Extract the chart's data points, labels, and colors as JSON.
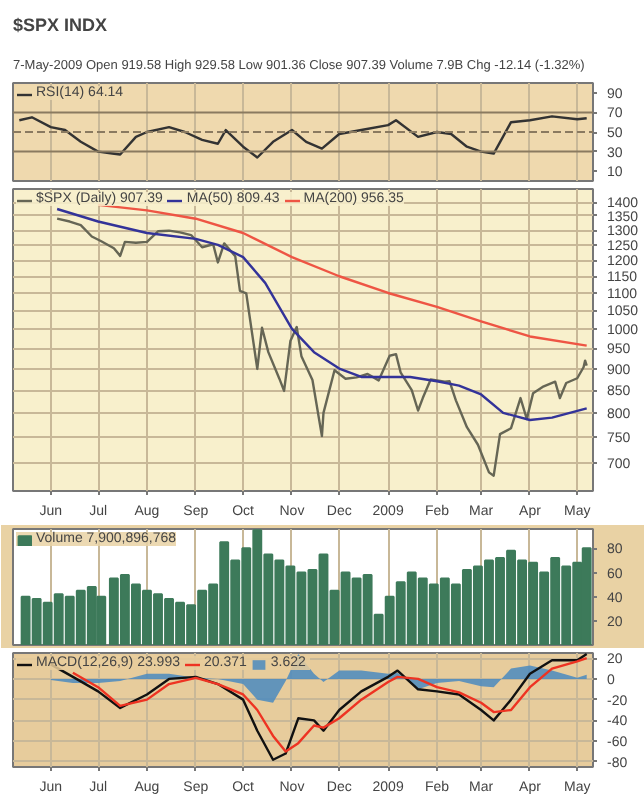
{
  "chart_data": [
    {
      "type": "line",
      "title": "$SPX INDX",
      "subtitle": "7-May-2009   Open 919.58 High 929.58 Low 901.36 Close 907.39 Volume 7.9B Chg -12.14 (-1.32%)",
      "series": [
        {
          "name": "RSI(14) 64.14",
          "color": "#333333",
          "x": [
            "2008-05-12",
            "2008-05-20",
            "2008-06-01",
            "2008-06-10",
            "2008-06-20",
            "2008-07-01",
            "2008-07-10",
            "2008-07-15",
            "2008-07-25",
            "2008-08-01",
            "2008-08-15",
            "2008-08-25",
            "2008-09-05",
            "2008-09-15",
            "2008-09-20",
            "2008-10-01",
            "2008-10-10",
            "2008-10-20",
            "2008-11-01",
            "2008-11-10",
            "2008-11-20",
            "2008-12-01",
            "2008-12-15",
            "2009-01-01",
            "2009-01-06",
            "2009-01-20",
            "2009-02-01",
            "2009-02-10",
            "2009-02-20",
            "2009-03-01",
            "2009-03-09",
            "2009-03-20",
            "2009-04-01",
            "2009-04-15",
            "2009-05-01",
            "2009-05-07"
          ],
          "values": [
            62,
            65,
            55,
            52,
            40,
            30,
            28,
            27,
            45,
            50,
            55,
            50,
            42,
            38,
            52,
            35,
            24,
            40,
            52,
            40,
            33,
            48,
            52,
            57,
            62,
            45,
            50,
            48,
            35,
            30,
            28,
            60,
            62,
            66,
            63,
            64
          ]
        }
      ],
      "xlim": [
        "2008-05-08",
        "2009-05-11"
      ],
      "ylim": [
        0,
        100
      ],
      "yticks": [
        10,
        30,
        50,
        70,
        90
      ],
      "xticks": [
        {
          "value": "2008-06-01",
          "label": null
        },
        {
          "value": "2008-07-01",
          "label": null
        },
        {
          "value": "2008-08-01",
          "label": null
        },
        {
          "value": "2008-09-01",
          "label": null
        },
        {
          "value": "2008-10-01",
          "label": null
        },
        {
          "value": "2008-11-01",
          "label": null
        },
        {
          "value": "2008-12-01",
          "label": null
        },
        {
          "value": "2009-01-01",
          "label": null
        },
        {
          "value": "2009-02-01",
          "label": null
        },
        {
          "value": "2009-03-01",
          "label": null
        },
        {
          "value": "2009-04-01",
          "label": null
        },
        {
          "value": "2009-05-01",
          "label": null
        }
      ],
      "ref_lines": [
        {
          "axis": "y",
          "value": 70,
          "color": "#8a7a60",
          "line_style": "solid"
        },
        {
          "axis": "y",
          "value": 50,
          "color": "#8a7a60",
          "line_style": "dashed"
        },
        {
          "axis": "y",
          "value": 30,
          "color": "#8a7a60",
          "line_style": "solid"
        }
      ],
      "tick_labels": "y",
      "grid": "x",
      "legend": "top left"
    },
    {
      "type": "line",
      "log": "y",
      "series": [
        {
          "name": "$SPX (Daily) 907.39",
          "color": "#666655",
          "x": [
            "2008-06-05",
            "2008-06-13",
            "2008-06-20",
            "2008-06-27",
            "2008-07-03",
            "2008-07-11",
            "2008-07-15",
            "2008-07-18",
            "2008-07-25",
            "2008-08-01",
            "2008-08-08",
            "2008-08-15",
            "2008-08-22",
            "2008-08-29",
            "2008-09-05",
            "2008-09-12",
            "2008-09-15",
            "2008-09-19",
            "2008-09-26",
            "2008-09-29",
            "2008-10-03",
            "2008-10-10",
            "2008-10-13",
            "2008-10-17",
            "2008-10-24",
            "2008-10-27",
            "2008-10-31",
            "2008-11-04",
            "2008-11-07",
            "2008-11-14",
            "2008-11-20",
            "2008-11-21",
            "2008-11-28",
            "2008-12-05",
            "2008-12-12",
            "2008-12-19",
            "2008-12-26",
            "2009-01-02",
            "2009-01-06",
            "2009-01-09",
            "2009-01-16",
            "2009-01-20",
            "2009-01-23",
            "2009-01-28",
            "2009-02-06",
            "2009-02-09",
            "2009-02-13",
            "2009-02-20",
            "2009-02-27",
            "2009-03-06",
            "2009-03-09",
            "2009-03-13",
            "2009-03-20",
            "2009-03-26",
            "2009-03-30",
            "2009-04-03",
            "2009-04-09",
            "2009-04-17",
            "2009-04-20",
            "2009-04-24",
            "2009-05-01",
            "2009-05-05",
            "2009-05-06",
            "2009-05-07"
          ],
          "values": [
            1340,
            1330,
            1317,
            1278,
            1262,
            1239,
            1214,
            1260,
            1257,
            1260,
            1296,
            1298,
            1292,
            1283,
            1242,
            1252,
            1193,
            1255,
            1213,
            1106,
            1099,
            899,
            1003,
            940,
            876,
            848,
            968,
            1005,
            930,
            873,
            752,
            800,
            896,
            876,
            879,
            887,
            872,
            931,
            935,
            890,
            850,
            805,
            832,
            874,
            869,
            870,
            827,
            770,
            735,
            683,
            677,
            756,
            768,
            832,
            787,
            843,
            857,
            869,
            832,
            866,
            877,
            903,
            919,
            907
          ]
        },
        {
          "name": "MA(50) 809.43",
          "color": "#333399",
          "x": [
            "2008-06-05",
            "2008-07-01",
            "2008-08-01",
            "2008-09-01",
            "2008-09-15",
            "2008-10-01",
            "2008-10-15",
            "2008-11-01",
            "2008-11-15",
            "2008-12-01",
            "2008-12-15",
            "2009-01-01",
            "2009-01-15",
            "2009-02-01",
            "2009-02-15",
            "2009-03-01",
            "2009-03-15",
            "2009-04-01",
            "2009-04-15",
            "2009-05-07"
          ],
          "values": [
            1375,
            1330,
            1290,
            1270,
            1250,
            1210,
            1130,
            1000,
            940,
            900,
            880,
            880,
            880,
            870,
            860,
            840,
            800,
            785,
            790,
            809.43
          ]
        },
        {
          "name": "MA(200) 956.35",
          "color": "#ee5544",
          "x": [
            "2008-07-01",
            "2008-08-01",
            "2008-09-01",
            "2008-10-01",
            "2008-11-01",
            "2008-12-01",
            "2009-01-01",
            "2009-02-01",
            "2009-03-01",
            "2009-04-01",
            "2009-05-07"
          ],
          "values": [
            1390,
            1370,
            1340,
            1290,
            1210,
            1150,
            1100,
            1060,
            1020,
            980,
            956.35
          ]
        }
      ],
      "xlim": [
        "2008-05-08",
        "2009-05-11"
      ],
      "ylim": [
        650,
        1450
      ],
      "yticks": [
        700,
        750,
        800,
        850,
        900,
        950,
        1000,
        1050,
        1100,
        1150,
        1200,
        1250,
        1300,
        1350,
        1400
      ],
      "xticks": [
        {
          "value": "2008-06-01",
          "label": "Jun"
        },
        {
          "value": "2008-07-01",
          "label": "Jul"
        },
        {
          "value": "2008-08-01",
          "label": "Aug"
        },
        {
          "value": "2008-09-01",
          "label": "Sep"
        },
        {
          "value": "2008-10-01",
          "label": "Oct"
        },
        {
          "value": "2008-11-01",
          "label": "Nov"
        },
        {
          "value": "2008-12-01",
          "label": "Dec"
        },
        {
          "value": "2009-01-01",
          "label": "2009"
        },
        {
          "value": "2009-02-01",
          "label": "Feb"
        },
        {
          "value": "2009-03-01",
          "label": "Mar"
        },
        {
          "value": "2009-04-01",
          "label": "Apr"
        },
        {
          "value": "2009-05-01",
          "label": "May"
        }
      ],
      "grid": true,
      "legend": "top left"
    },
    {
      "type": "bar",
      "series": [
        {
          "name": "Volume 7,900,896,768",
          "color": "#3d7a5a",
          "x": [
            "2008-05-16",
            "2008-05-23",
            "2008-05-30",
            "2008-06-06",
            "2008-06-13",
            "2008-06-20",
            "2008-06-27",
            "2008-07-03",
            "2008-07-11",
            "2008-07-18",
            "2008-07-25",
            "2008-08-01",
            "2008-08-08",
            "2008-08-15",
            "2008-08-22",
            "2008-08-29",
            "2008-09-05",
            "2008-09-12",
            "2008-09-19",
            "2008-09-26",
            "2008-10-03",
            "2008-10-10",
            "2008-10-17",
            "2008-10-24",
            "2008-10-31",
            "2008-11-07",
            "2008-11-14",
            "2008-11-21",
            "2008-11-28",
            "2008-12-05",
            "2008-12-12",
            "2008-12-19",
            "2008-12-26",
            "2009-01-02",
            "2009-01-09",
            "2009-01-16",
            "2009-01-23",
            "2009-01-30",
            "2009-02-06",
            "2009-02-13",
            "2009-02-20",
            "2009-02-27",
            "2009-03-06",
            "2009-03-13",
            "2009-03-20",
            "2009-03-27",
            "2009-04-03",
            "2009-04-10",
            "2009-04-17",
            "2009-04-24",
            "2009-05-01",
            "2009-05-07"
          ],
          "values": [
            40,
            38,
            35,
            42,
            40,
            45,
            48,
            40,
            55,
            58,
            50,
            45,
            42,
            38,
            35,
            33,
            45,
            50,
            85,
            70,
            80,
            95,
            75,
            70,
            65,
            60,
            62,
            75,
            45,
            60,
            55,
            58,
            25,
            40,
            52,
            60,
            55,
            50,
            55,
            50,
            62,
            65,
            70,
            72,
            78,
            70,
            68,
            60,
            72,
            65,
            68,
            80
          ]
        }
      ],
      "xlim": [
        "2008-05-08",
        "2009-05-11"
      ],
      "ylim": [
        0,
        96
      ],
      "yticks": [
        20,
        40,
        60,
        80
      ],
      "xticks": [
        {
          "value": "2008-06-01",
          "label": null
        },
        {
          "value": "2008-07-01",
          "label": null
        },
        {
          "value": "2008-08-01",
          "label": null
        },
        {
          "value": "2008-09-01",
          "label": null
        },
        {
          "value": "2008-10-01",
          "label": null
        },
        {
          "value": "2008-11-01",
          "label": null
        },
        {
          "value": "2008-12-01",
          "label": null
        },
        {
          "value": "2009-01-01",
          "label": null
        },
        {
          "value": "2009-02-01",
          "label": null
        },
        {
          "value": "2009-03-01",
          "label": null
        },
        {
          "value": "2009-04-01",
          "label": null
        },
        {
          "value": "2009-05-01",
          "label": null
        }
      ],
      "tick_labels": "y",
      "grid": "x",
      "legend": "top left"
    },
    {
      "type": "line",
      "series": [
        {
          "name": "MACD(12,26,9) 23.993",
          "color": "#111111",
          "x": [
            "2008-06-01",
            "2008-06-15",
            "2008-07-01",
            "2008-07-15",
            "2008-08-01",
            "2008-08-15",
            "2008-09-01",
            "2008-09-15",
            "2008-10-01",
            "2008-10-10",
            "2008-10-20",
            "2008-10-28",
            "2008-11-05",
            "2008-11-15",
            "2008-11-21",
            "2008-12-01",
            "2008-12-15",
            "2009-01-01",
            "2009-01-07",
            "2009-01-20",
            "2009-02-01",
            "2009-02-15",
            "2009-03-01",
            "2009-03-09",
            "2009-03-20",
            "2009-04-01",
            "2009-04-15",
            "2009-05-01",
            "2009-05-07"
          ],
          "values": [
            14,
            2,
            -12,
            -28,
            -15,
            0,
            2,
            -5,
            -20,
            -50,
            -78,
            -72,
            -38,
            -40,
            -50,
            -30,
            -12,
            2,
            8,
            -10,
            -12,
            -15,
            -30,
            -40,
            -20,
            5,
            18,
            18,
            24
          ]
        },
        {
          "name": "20.371",
          "color": "#ee3322",
          "x": [
            "2008-06-15",
            "2008-07-01",
            "2008-07-15",
            "2008-08-01",
            "2008-08-15",
            "2008-09-01",
            "2008-09-15",
            "2008-10-01",
            "2008-10-10",
            "2008-10-20",
            "2008-10-28",
            "2008-11-05",
            "2008-11-15",
            "2008-11-21",
            "2008-12-01",
            "2008-12-15",
            "2009-01-01",
            "2009-01-07",
            "2009-01-20",
            "2009-02-01",
            "2009-02-15",
            "2009-03-01",
            "2009-03-09",
            "2009-03-20",
            "2009-04-01",
            "2009-04-15",
            "2009-05-01",
            "2009-05-07"
          ],
          "values": [
            6,
            -8,
            -26,
            -20,
            -5,
            1,
            -5,
            -15,
            -30,
            -55,
            -70,
            -62,
            -45,
            -47,
            -38,
            -20,
            -3,
            2,
            0,
            -8,
            -13,
            -23,
            -32,
            -30,
            -8,
            10,
            17,
            20
          ]
        },
        {
          "name": "3.622",
          "type": "area",
          "color": "#4a8ac0",
          "x": [
            "2008-06-01",
            "2008-06-15",
            "2008-07-01",
            "2008-07-15",
            "2008-08-01",
            "2008-08-15",
            "2008-09-01",
            "2008-09-15",
            "2008-10-01",
            "2008-10-10",
            "2008-10-20",
            "2008-10-28",
            "2008-11-05",
            "2008-11-15",
            "2008-11-21",
            "2008-12-01",
            "2008-12-15",
            "2009-01-01",
            "2009-01-07",
            "2009-01-20",
            "2009-02-01",
            "2009-02-15",
            "2009-03-01",
            "2009-03-09",
            "2009-03-20",
            "2009-04-01",
            "2009-04-15",
            "2009-05-01",
            "2009-05-07"
          ],
          "values": [
            -1,
            -4,
            -4,
            -2,
            5,
            5,
            1,
            0,
            -5,
            -20,
            -23,
            -2,
            24,
            5,
            -3,
            8,
            8,
            5,
            6,
            -10,
            -4,
            -2,
            -7,
            -8,
            10,
            13,
            8,
            1,
            4
          ]
        }
      ],
      "xlim": [
        "2008-05-08",
        "2009-05-11"
      ],
      "ylim": [
        -85,
        25
      ],
      "yticks": [
        -80,
        -60,
        -40,
        -20,
        0,
        20
      ],
      "xticks": [
        {
          "value": "2008-06-01",
          "label": "Jun"
        },
        {
          "value": "2008-07-01",
          "label": "Jul"
        },
        {
          "value": "2008-08-01",
          "label": "Aug"
        },
        {
          "value": "2008-09-01",
          "label": "Sep"
        },
        {
          "value": "2008-10-01",
          "label": "Oct"
        },
        {
          "value": "2008-11-01",
          "label": "Nov"
        },
        {
          "value": "2008-12-01",
          "label": "Dec"
        },
        {
          "value": "2009-01-01",
          "label": "2009"
        },
        {
          "value": "2009-02-01",
          "label": "Feb"
        },
        {
          "value": "2009-03-01",
          "label": "Mar"
        },
        {
          "value": "2009-04-01",
          "label": "Apr"
        },
        {
          "value": "2009-05-01",
          "label": "May"
        }
      ],
      "grid": true,
      "legend": "top left"
    }
  ]
}
